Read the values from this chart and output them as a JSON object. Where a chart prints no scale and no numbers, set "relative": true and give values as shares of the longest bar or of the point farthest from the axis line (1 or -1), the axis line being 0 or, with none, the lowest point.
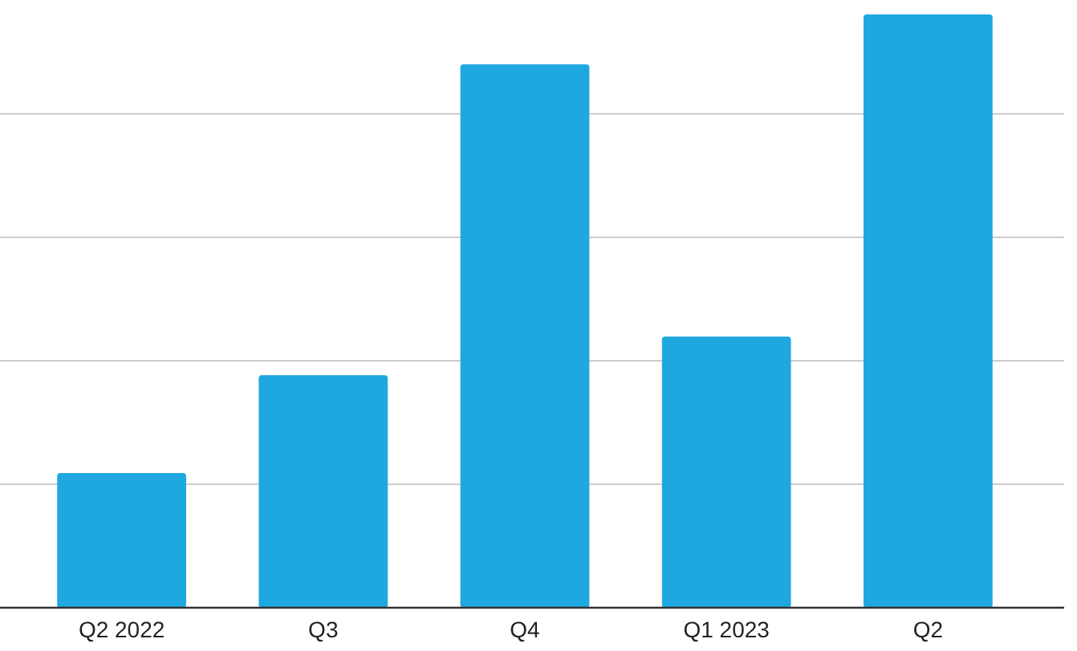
{
  "chart_data": {
    "type": "bar",
    "relative": true,
    "categories": [
      "Q2 2022",
      "Q3",
      "Q4",
      "Q1 2023",
      "Q2"
    ],
    "values": [
      0.227,
      0.392,
      0.916,
      0.457,
      1
    ],
    "color": "#1fa8e0",
    "grid": true
  }
}
